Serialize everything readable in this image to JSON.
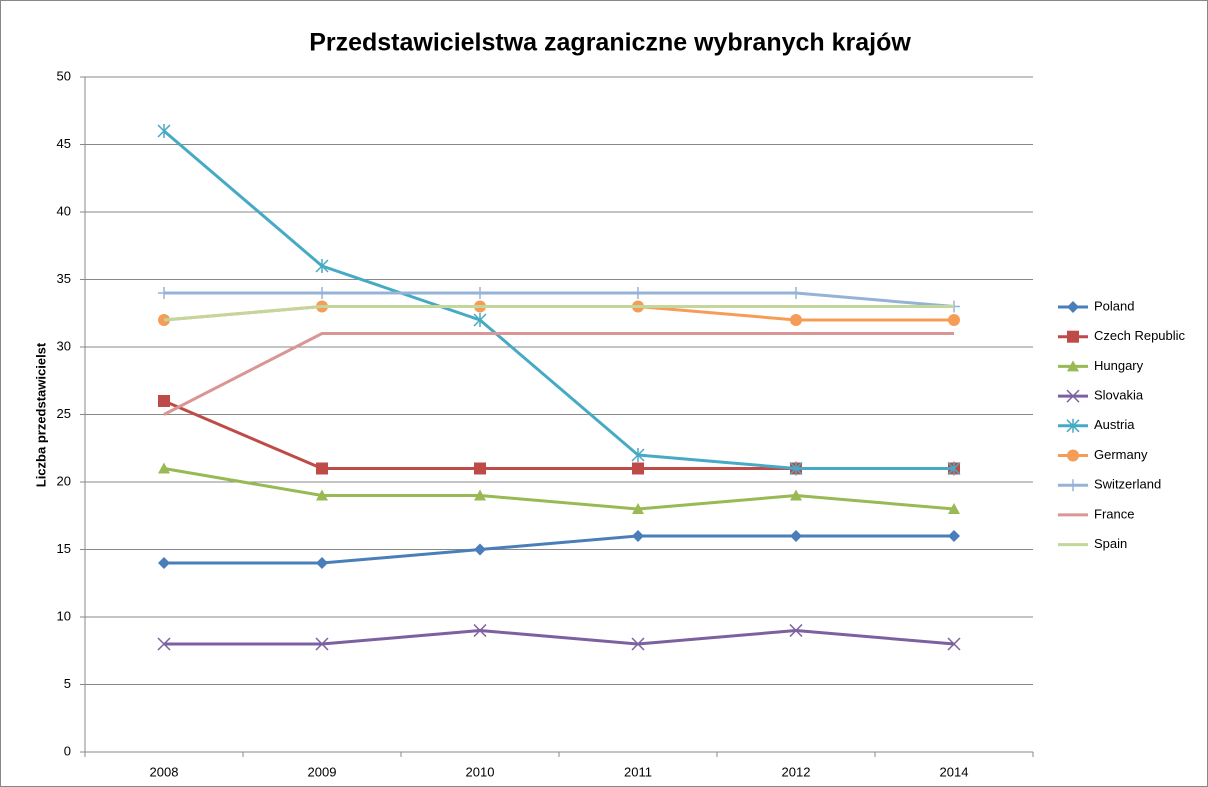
{
  "chart_data": {
    "type": "line",
    "title": "Przedstawicielstwa zagraniczne wybranych krajów",
    "y_label": "Liczba przedstawicielst",
    "categories": [
      "2008",
      "2009",
      "2010",
      "2011",
      "2012",
      "2014"
    ],
    "ylim": [
      0,
      50
    ],
    "yticks": [
      0,
      5,
      10,
      15,
      20,
      25,
      30,
      35,
      40,
      45,
      50
    ],
    "grid": true,
    "legend": "right",
    "series": [
      {
        "name": "Poland",
        "color": "#4a7ebb",
        "marker": "diamond",
        "values": [
          14,
          14,
          15,
          16,
          16,
          16
        ]
      },
      {
        "name": "Czech Republic",
        "color": "#be4b48",
        "marker": "square",
        "values": [
          26,
          21,
          21,
          21,
          21,
          21
        ]
      },
      {
        "name": "Hungary",
        "color": "#98b954",
        "marker": "triangle",
        "values": [
          21,
          19,
          19,
          18,
          19,
          18
        ]
      },
      {
        "name": "Slovakia",
        "color": "#7d60a0",
        "marker": "x",
        "values": [
          8,
          8,
          9,
          8,
          9,
          8
        ]
      },
      {
        "name": "Austria",
        "color": "#46aac5",
        "marker": "star",
        "values": [
          46,
          36,
          32,
          22,
          21,
          21
        ]
      },
      {
        "name": "Germany",
        "color": "#f59d56",
        "marker": "circle",
        "values": [
          32,
          33,
          33,
          33,
          32,
          32
        ]
      },
      {
        "name": "Switzerland",
        "color": "#95b3d7",
        "marker": "plus",
        "values": [
          34,
          34,
          34,
          34,
          34,
          33
        ]
      },
      {
        "name": "France",
        "color": "#d99694",
        "marker": "none",
        "values": [
          25,
          31,
          31,
          31,
          31,
          31
        ]
      },
      {
        "name": "Spain",
        "color": "#c3d69b",
        "marker": "none",
        "values": [
          32,
          33,
          33,
          33,
          33,
          33
        ]
      }
    ]
  }
}
